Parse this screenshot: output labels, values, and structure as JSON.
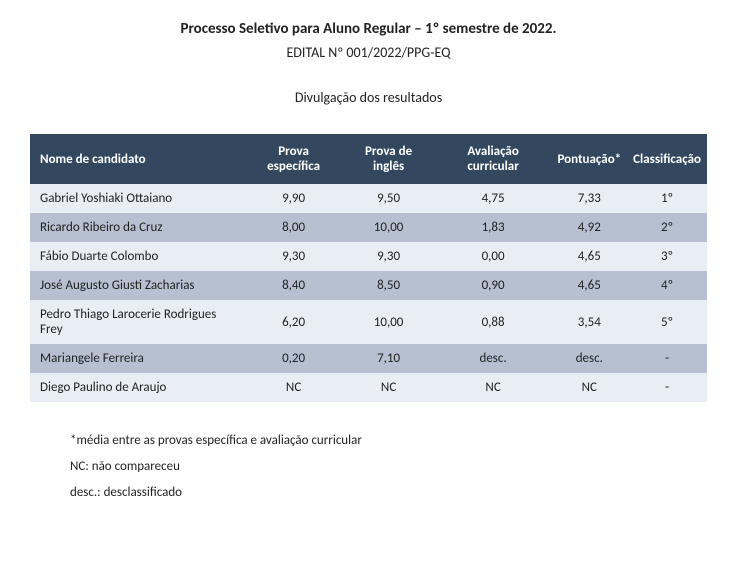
{
  "header": {
    "title": "Processo Seletivo para Aluno Regular – 1º semestre de 2022.",
    "edital": "EDITAL Nº 001/2022/PPG-EQ",
    "subtitle": "Divulgação dos resultados"
  },
  "table": {
    "columns": [
      "Nome de candidato",
      "Prova específica",
      "Prova de inglês",
      "Avaliação curricular",
      "Pontuação*",
      "Classificação"
    ],
    "column_align": [
      "left",
      "center",
      "center",
      "center",
      "center",
      "center"
    ],
    "header_bg": "#33475f",
    "header_fg": "#ffffff",
    "row_bg_odd": "#e9eef4",
    "row_bg_even": "#b6c0d0",
    "rows": [
      [
        "Gabriel Yoshiaki Ottaiano",
        "9,90",
        "9,50",
        "4,75",
        "7,33",
        "1º"
      ],
      [
        "Ricardo Ribeiro da Cruz",
        "8,00",
        "10,00",
        "1,83",
        "4,92",
        "2º"
      ],
      [
        "Fábio Duarte Colombo",
        "9,30",
        "9,30",
        "0,00",
        "4,65",
        "3º"
      ],
      [
        "José Augusto Giusti Zacharias",
        "8,40",
        "8,50",
        "0,90",
        "4,65",
        "4º"
      ],
      [
        "Pedro Thiago Larocerie Rodrigues Frey",
        "6,20",
        "10,00",
        "0,88",
        "3,54",
        "5º"
      ],
      [
        "Mariangele Ferreira",
        "0,20",
        "7,10",
        "desc.",
        "desc.",
        "-"
      ],
      [
        "Diego Paulino de Araujo",
        "NC",
        "NC",
        "NC",
        "NC",
        "-"
      ]
    ]
  },
  "footnotes": {
    "note1": "*média entre as provas específica e avaliação curricular",
    "note2": "NC: não compareceu",
    "note3": "desc.: desclassificado"
  }
}
